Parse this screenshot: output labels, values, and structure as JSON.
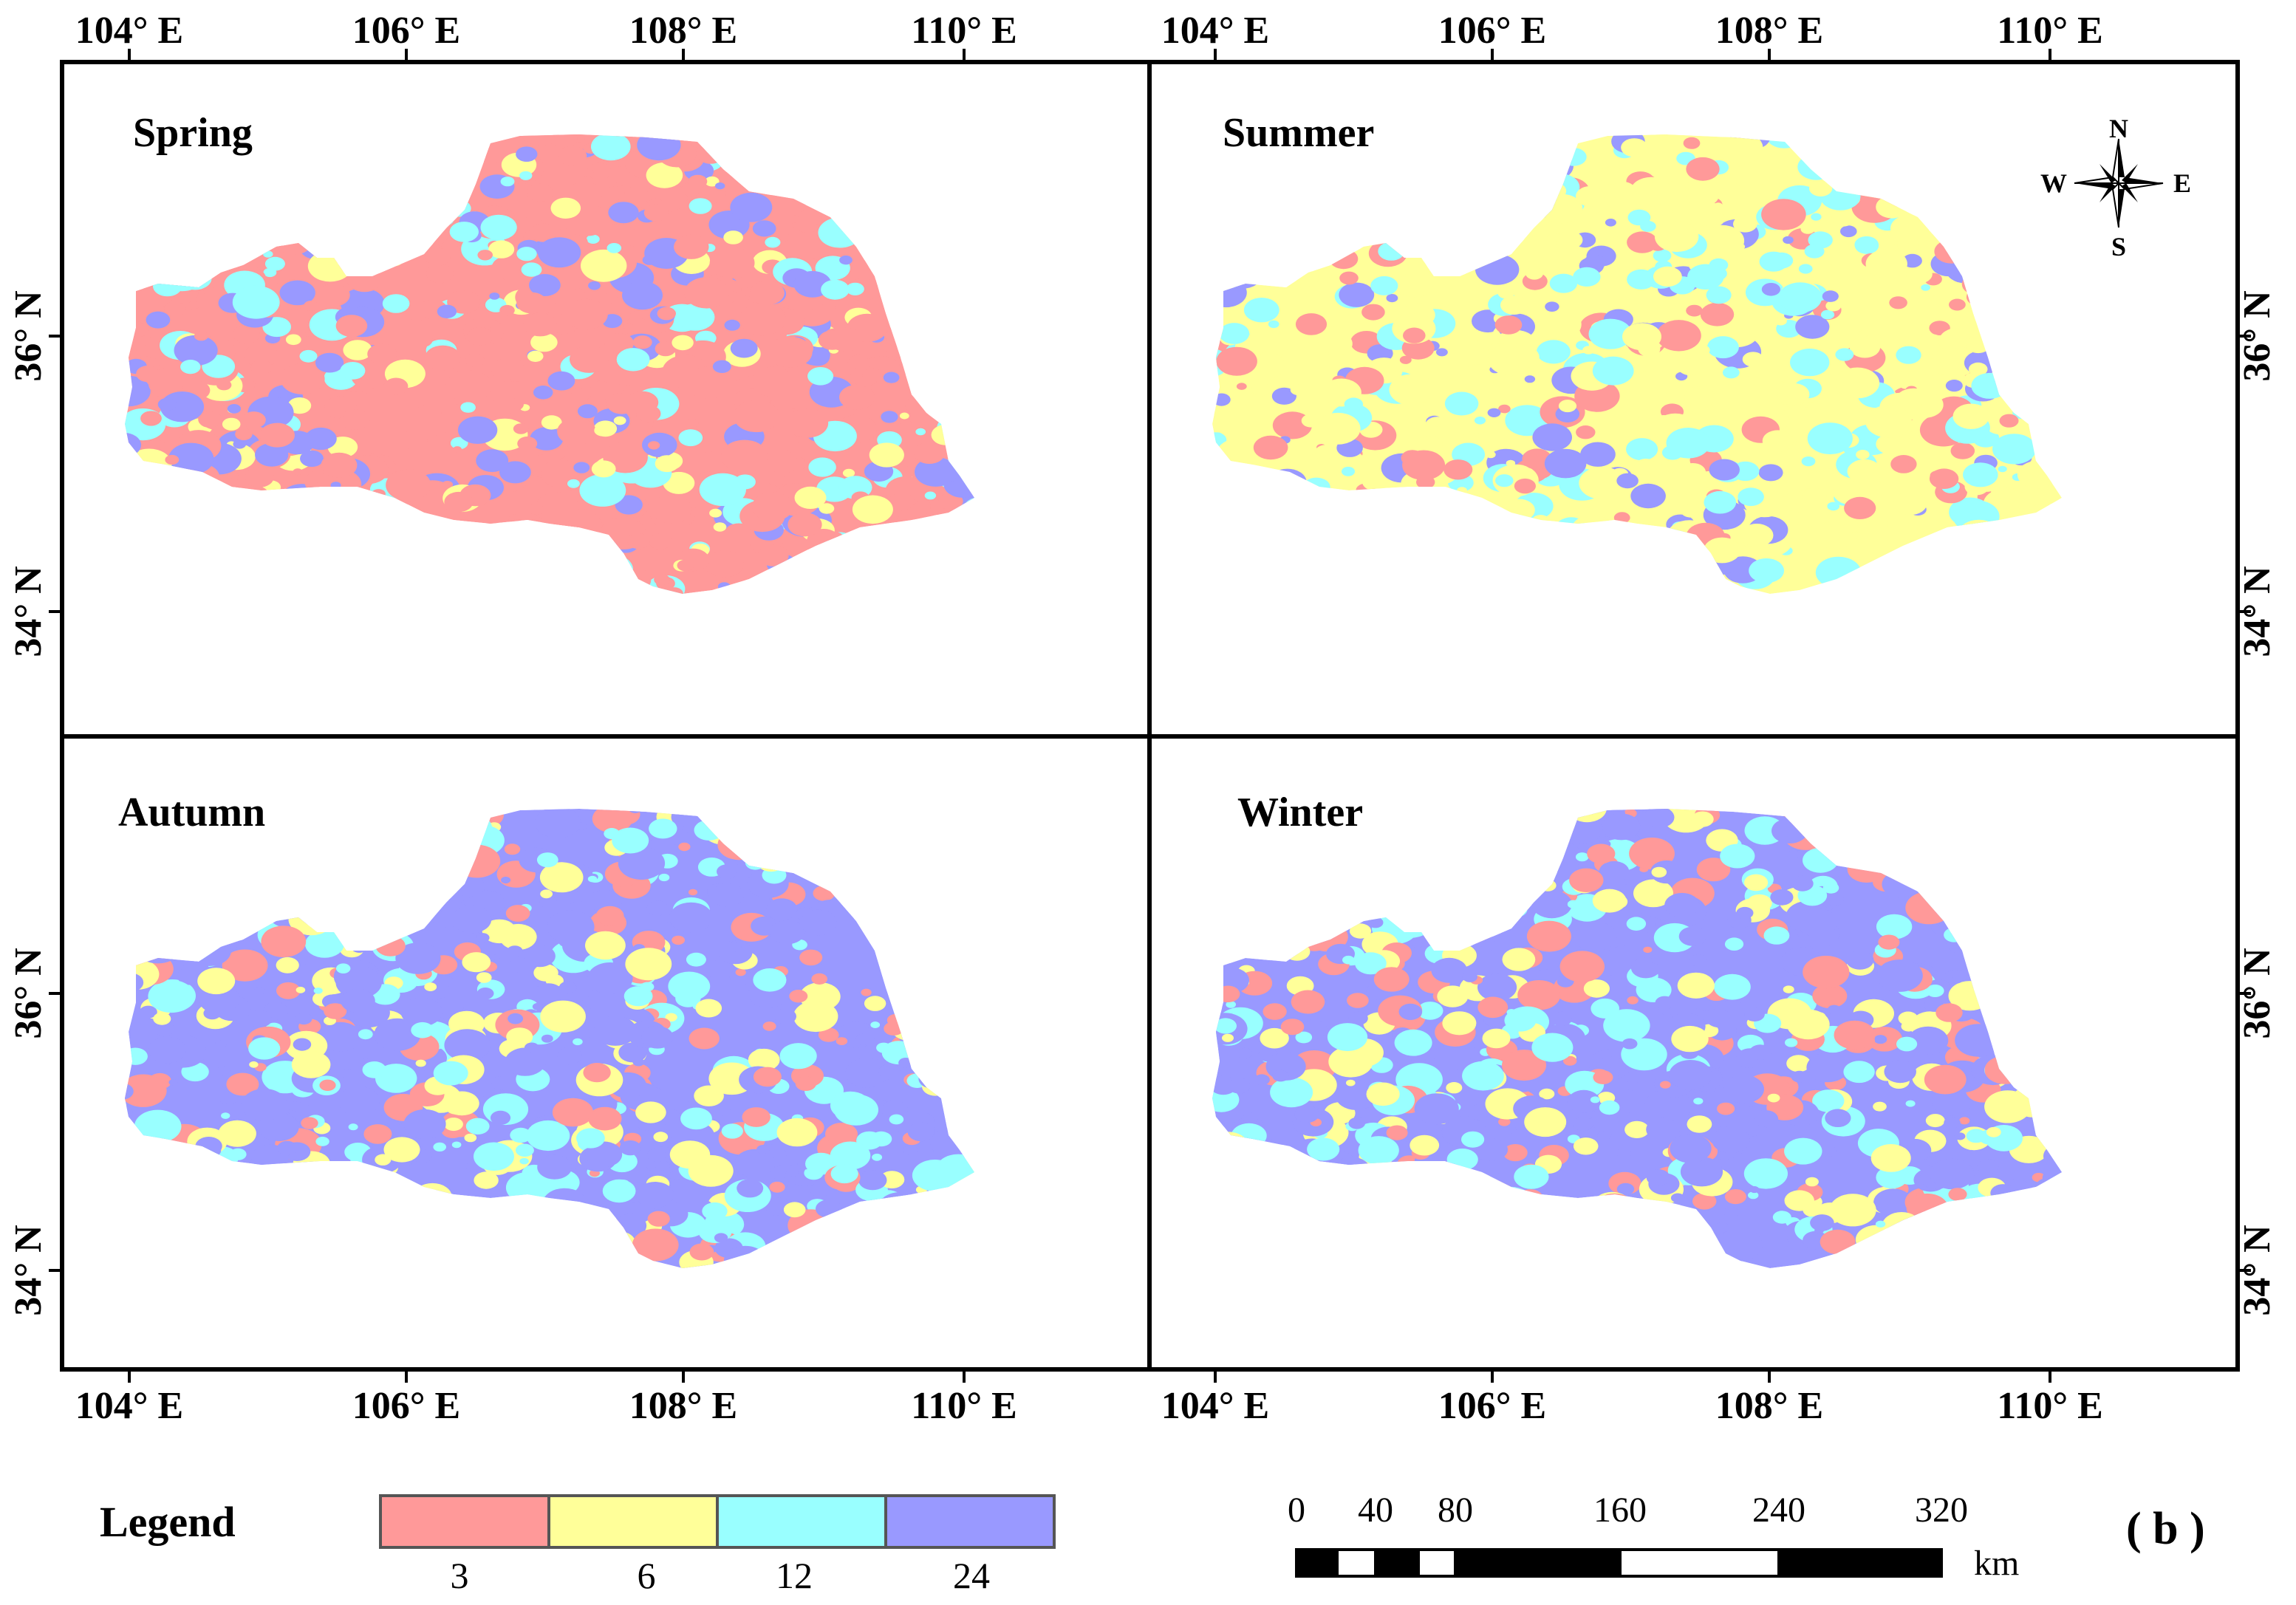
{
  "figure": {
    "panel_tag": "( b )",
    "lon_top_labels": [
      "104° E",
      "106° E",
      "108° E",
      "110° E"
    ],
    "lon_bottom_labels": [
      "104° E",
      "106° E",
      "108° E",
      "110° E"
    ],
    "lat_labels": [
      "36° N",
      "34° N"
    ]
  },
  "panels": [
    {
      "title": "Spring",
      "dominant": "#FF9999"
    },
    {
      "title": "Summer",
      "dominant": "#FFFF99"
    },
    {
      "title": "Autumn",
      "dominant": "#9999FF"
    },
    {
      "title": "Winter",
      "dominant": "#9999FF"
    }
  ],
  "compass": {
    "north": "N",
    "south": "S",
    "east": "E",
    "west": "W"
  },
  "legend": {
    "title": "Legend",
    "classes": [
      {
        "label": "3",
        "color": "#FF9999"
      },
      {
        "label": "6",
        "color": "#FFFF99"
      },
      {
        "label": "12",
        "color": "#99FFFF"
      },
      {
        "label": "24",
        "color": "#9999FF"
      }
    ]
  },
  "scale_bar": {
    "labels": [
      "0",
      "40",
      "80",
      "160",
      "240",
      "320"
    ],
    "unit": "km"
  }
}
